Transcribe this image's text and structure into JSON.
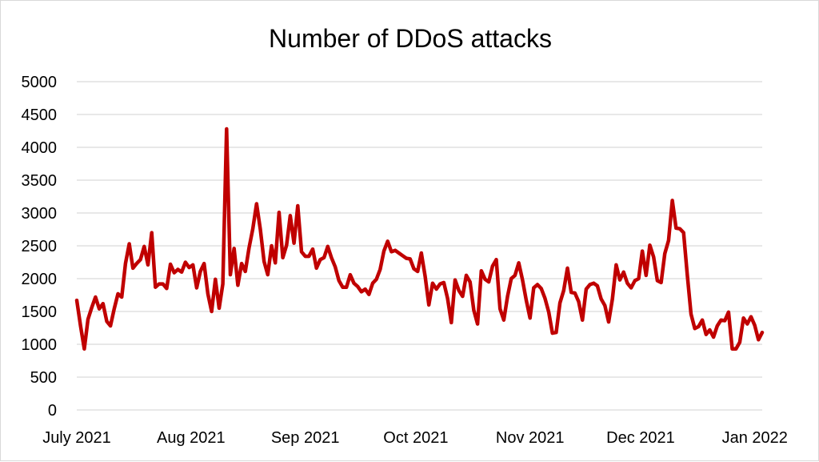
{
  "chart_data": {
    "type": "line",
    "title": "Number of DDoS attacks",
    "xlabel": "",
    "ylabel": "",
    "ylim": [
      0,
      5000
    ],
    "yticks": [
      "0",
      "500",
      "1000",
      "1500",
      "2000",
      "2500",
      "3000",
      "3500",
      "4000",
      "4500",
      "5000"
    ],
    "xticks": [
      "July 2021",
      "Aug 2021",
      "Sep 2021",
      "Oct 2021",
      "Nov 2021",
      "Dec 2021",
      "Jan 2022"
    ],
    "x_start": "2021-07-01",
    "x_end": "2022-01-03",
    "grid": true,
    "legend": "none",
    "colors": {
      "series": "#c00000",
      "grid": "#d9d9d9"
    },
    "series": [
      {
        "values": [
          1670,
          1280,
          930,
          1380,
          1560,
          1720,
          1540,
          1620,
          1350,
          1280,
          1540,
          1770,
          1720,
          2230,
          2530,
          2160,
          2230,
          2290,
          2490,
          2210,
          2700,
          1870,
          1920,
          1920,
          1850,
          2220,
          2090,
          2140,
          2100,
          2250,
          2170,
          2210,
          1860,
          2110,
          2230,
          1770,
          1500,
          1990,
          1550,
          1920,
          4280,
          2060,
          2460,
          1900,
          2230,
          2110,
          2470,
          2760,
          3140,
          2750,
          2260,
          2060,
          2500,
          2240,
          3010,
          2320,
          2510,
          2960,
          2540,
          3110,
          2410,
          2340,
          2340,
          2450,
          2160,
          2290,
          2320,
          2490,
          2320,
          2180,
          1970,
          1870,
          1870,
          2060,
          1930,
          1880,
          1800,
          1840,
          1760,
          1930,
          1990,
          2140,
          2420,
          2570,
          2410,
          2430,
          2390,
          2350,
          2310,
          2300,
          2150,
          2110,
          2390,
          2040,
          1600,
          1930,
          1840,
          1920,
          1940,
          1700,
          1330,
          1980,
          1820,
          1730,
          2050,
          1950,
          1520,
          1310,
          2120,
          1990,
          1950,
          2190,
          2290,
          1540,
          1370,
          1730,
          2000,
          2050,
          2240,
          1980,
          1670,
          1400,
          1860,
          1910,
          1850,
          1700,
          1490,
          1170,
          1180,
          1630,
          1820,
          2160,
          1790,
          1780,
          1650,
          1370,
          1840,
          1910,
          1930,
          1890,
          1690,
          1590,
          1340,
          1690,
          2210,
          1980,
          2100,
          1930,
          1860,
          1970,
          2000,
          2420,
          2050,
          2510,
          2330,
          1970,
          1940,
          2380,
          2580,
          3190,
          2770,
          2760,
          2700,
          2060,
          1460,
          1240,
          1270,
          1370,
          1150,
          1220,
          1110,
          1280,
          1370,
          1360,
          1490,
          930,
          930,
          1030,
          1400,
          1310,
          1420,
          1290,
          1070,
          1180
        ]
      }
    ]
  }
}
